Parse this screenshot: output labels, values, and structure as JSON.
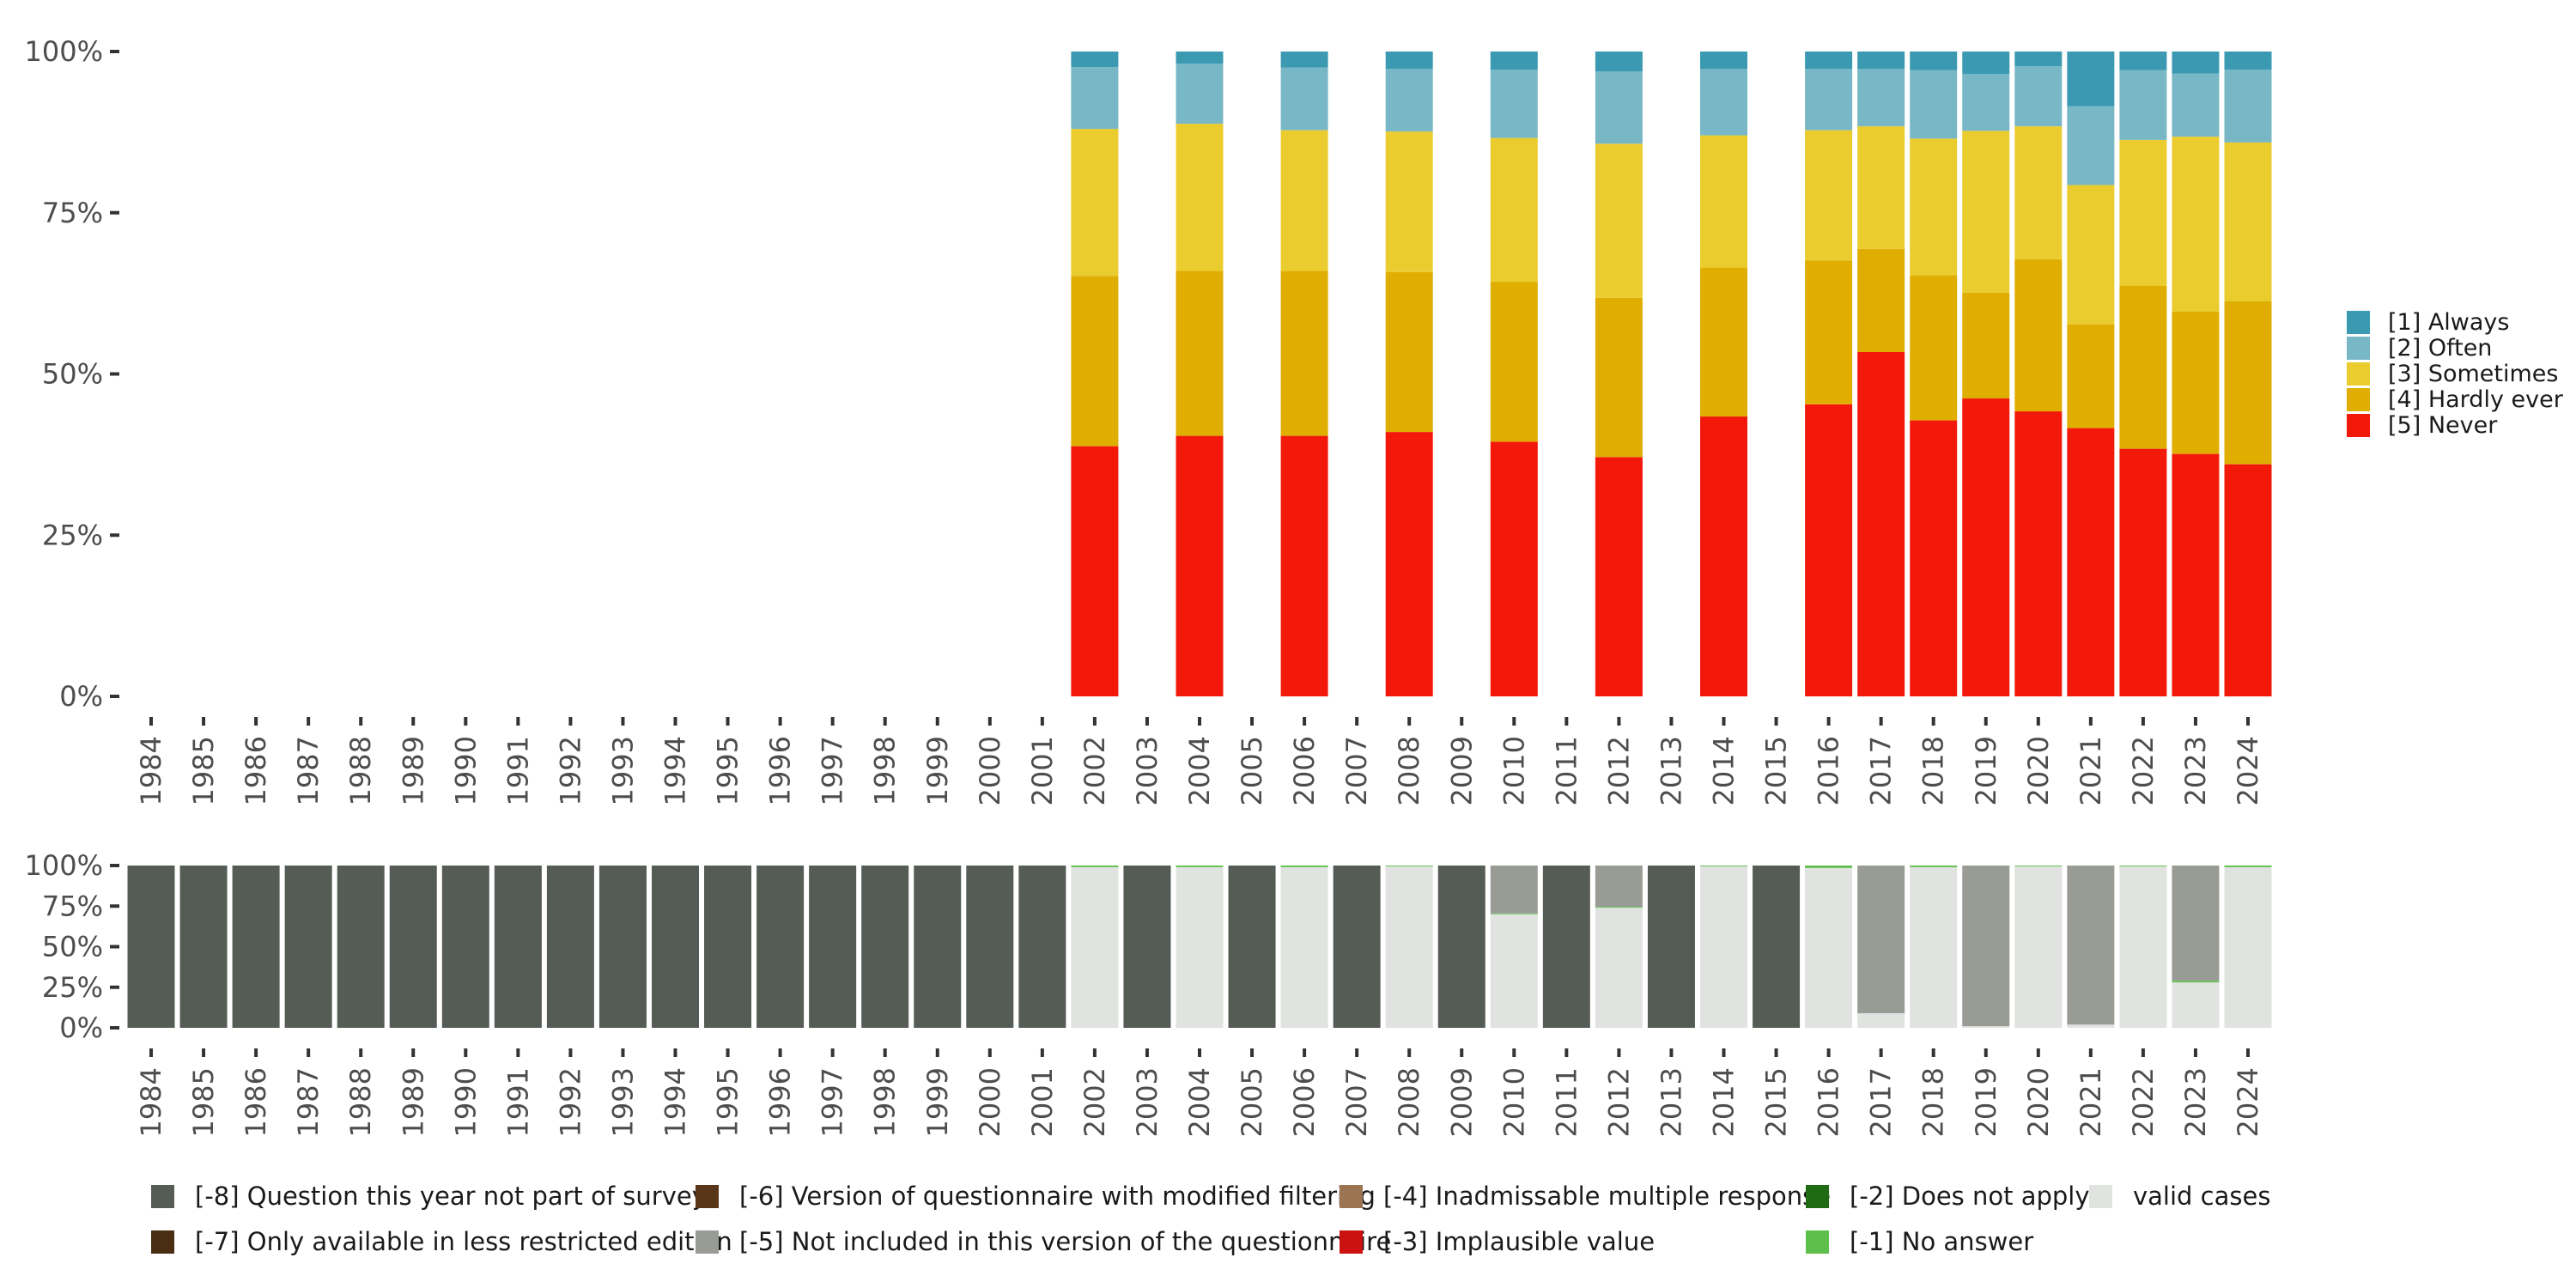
{
  "chart_data": [
    {
      "type": "bar",
      "stacked": true,
      "title": "",
      "xlabel": "",
      "ylabel": "",
      "ylim": [
        0,
        100
      ],
      "yticks": [
        "0%",
        "25%",
        "50%",
        "75%",
        "100%"
      ],
      "categories": [
        "1984",
        "1985",
        "1986",
        "1987",
        "1988",
        "1989",
        "1990",
        "1991",
        "1992",
        "1993",
        "1994",
        "1995",
        "1996",
        "1997",
        "1998",
        "1999",
        "2000",
        "2001",
        "2002",
        "2003",
        "2004",
        "2005",
        "2006",
        "2007",
        "2008",
        "2009",
        "2010",
        "2011",
        "2012",
        "2013",
        "2014",
        "2015",
        "2016",
        "2017",
        "2018",
        "2019",
        "2020",
        "2021",
        "2022",
        "2023",
        "2024"
      ],
      "legend_position": "right",
      "series": [
        {
          "name": "[5] Never",
          "color": "#f2190a",
          "values": [
            0,
            0,
            0,
            0,
            0,
            0,
            0,
            0,
            0,
            0,
            0,
            0,
            0,
            0,
            0,
            0,
            0,
            0,
            38.8,
            0,
            40.4,
            0,
            40.4,
            0,
            41.0,
            0,
            39.5,
            0,
            37.1,
            0,
            43.4,
            0,
            45.3,
            53.4,
            42.8,
            46.2,
            44.2,
            41.6,
            38.4,
            37.6,
            36.0
          ]
        },
        {
          "name": "[4] Hardly ever",
          "color": "#e0ae00",
          "values": [
            0,
            0,
            0,
            0,
            0,
            0,
            0,
            0,
            0,
            0,
            0,
            0,
            0,
            0,
            0,
            0,
            0,
            0,
            26.4,
            0,
            25.6,
            0,
            25.6,
            0,
            24.8,
            0,
            24.8,
            0,
            24.7,
            0,
            23.1,
            0,
            22.3,
            16.0,
            22.5,
            16.4,
            23.6,
            16.1,
            25.3,
            22.1,
            25.3
          ]
        },
        {
          "name": "[3] Sometimes",
          "color": "#ebcc2e",
          "values": [
            0,
            0,
            0,
            0,
            0,
            0,
            0,
            0,
            0,
            0,
            0,
            0,
            0,
            0,
            0,
            0,
            0,
            0,
            22.8,
            0,
            22.8,
            0,
            21.8,
            0,
            21.8,
            0,
            22.3,
            0,
            23.9,
            0,
            20.5,
            0,
            20.2,
            19.0,
            21.2,
            25.1,
            20.6,
            21.6,
            22.6,
            27.1,
            24.6
          ]
        },
        {
          "name": "[2] Often",
          "color": "#78b7c5",
          "values": [
            0,
            0,
            0,
            0,
            0,
            0,
            0,
            0,
            0,
            0,
            0,
            0,
            0,
            0,
            0,
            0,
            0,
            0,
            9.6,
            0,
            9.3,
            0,
            9.7,
            0,
            9.7,
            0,
            10.6,
            0,
            11.2,
            0,
            10.3,
            0,
            9.5,
            8.9,
            10.6,
            8.8,
            9.3,
            12.2,
            10.8,
            9.8,
            11.3
          ]
        },
        {
          "name": "[1] Always",
          "color": "#3b9ab2",
          "values": [
            0,
            0,
            0,
            0,
            0,
            0,
            0,
            0,
            0,
            0,
            0,
            0,
            0,
            0,
            0,
            0,
            0,
            0,
            2.4,
            0,
            1.9,
            0,
            2.5,
            0,
            2.7,
            0,
            2.8,
            0,
            3.1,
            0,
            2.7,
            0,
            2.7,
            2.7,
            2.9,
            3.5,
            2.3,
            8.5,
            2.9,
            3.4,
            2.8
          ]
        }
      ]
    },
    {
      "type": "bar",
      "stacked": true,
      "title": "",
      "xlabel": "",
      "ylabel": "",
      "ylim": [
        0,
        100
      ],
      "yticks": [
        "0%",
        "25%",
        "50%",
        "75%",
        "100%"
      ],
      "categories": [
        "1984",
        "1985",
        "1986",
        "1987",
        "1988",
        "1989",
        "1990",
        "1991",
        "1992",
        "1993",
        "1994",
        "1995",
        "1996",
        "1997",
        "1998",
        "1999",
        "2000",
        "2001",
        "2002",
        "2003",
        "2004",
        "2005",
        "2006",
        "2007",
        "2008",
        "2009",
        "2010",
        "2011",
        "2012",
        "2013",
        "2014",
        "2015",
        "2016",
        "2017",
        "2018",
        "2019",
        "2020",
        "2021",
        "2022",
        "2023",
        "2024"
      ],
      "legend_position": "bottom",
      "series": [
        {
          "name": "valid cases",
          "color": "#e0e3df",
          "values": [
            0,
            0,
            0,
            0,
            0,
            0,
            0,
            0,
            0,
            0,
            0,
            0,
            0,
            0,
            0,
            0,
            0,
            0,
            99,
            0,
            99,
            0,
            99,
            0,
            99.5,
            0,
            70,
            0,
            74,
            0,
            99.5,
            0,
            98.5,
            9,
            99,
            1,
            99.5,
            2,
            99.5,
            28,
            99
          ]
        },
        {
          "name": "[-1] No answer",
          "color": "#5ec04a",
          "values": [
            0,
            0,
            0,
            0,
            0,
            0,
            0,
            0,
            0,
            0,
            0,
            0,
            0,
            0,
            0,
            0,
            0,
            0,
            1,
            0,
            1,
            0,
            1,
            0,
            0.5,
            0,
            0.5,
            0,
            0.5,
            0,
            0.5,
            0,
            1.5,
            0,
            1,
            0,
            0.5,
            0,
            0.5,
            1,
            1
          ]
        },
        {
          "name": "[-2] Does not apply",
          "color": "#1e6b14",
          "values": [
            0,
            0,
            0,
            0,
            0,
            0,
            0,
            0,
            0,
            0,
            0,
            0,
            0,
            0,
            0,
            0,
            0,
            0,
            0,
            0,
            0,
            0,
            0,
            0,
            0,
            0,
            0,
            0,
            0,
            0,
            0,
            0,
            0,
            0,
            0,
            0,
            0,
            0,
            0,
            0,
            0
          ]
        },
        {
          "name": "[-3] Implausible value",
          "color": "#cc1111",
          "values": [
            0,
            0,
            0,
            0,
            0,
            0,
            0,
            0,
            0,
            0,
            0,
            0,
            0,
            0,
            0,
            0,
            0,
            0,
            0,
            0,
            0,
            0,
            0,
            0,
            0,
            0,
            0,
            0,
            0,
            0,
            0,
            0,
            0,
            0,
            0,
            0,
            0,
            0,
            0,
            0,
            0
          ]
        },
        {
          "name": "[-4] Inadmissable multiple response",
          "color": "#9b7451",
          "values": [
            0,
            0,
            0,
            0,
            0,
            0,
            0,
            0,
            0,
            0,
            0,
            0,
            0,
            0,
            0,
            0,
            0,
            0,
            0,
            0,
            0,
            0,
            0,
            0,
            0,
            0,
            0,
            0,
            0,
            0,
            0,
            0,
            0,
            0,
            0,
            0,
            0,
            0,
            0,
            0,
            0
          ]
        },
        {
          "name": "[-5] Not included in this version of the questionnaire",
          "color": "#989c95",
          "values": [
            0,
            0,
            0,
            0,
            0,
            0,
            0,
            0,
            0,
            0,
            0,
            0,
            0,
            0,
            0,
            0,
            0,
            0,
            0,
            0,
            0,
            0,
            0,
            0,
            0,
            0,
            29.5,
            0,
            25.5,
            0,
            0,
            0,
            0,
            91,
            0,
            99,
            0,
            98,
            0,
            71,
            0
          ]
        },
        {
          "name": "[-6] Version of questionnaire with modified filtering",
          "color": "#5a3618",
          "values": [
            0,
            0,
            0,
            0,
            0,
            0,
            0,
            0,
            0,
            0,
            0,
            0,
            0,
            0,
            0,
            0,
            0,
            0,
            0,
            0,
            0,
            0,
            0,
            0,
            0,
            0,
            0,
            0,
            0,
            0,
            0,
            0,
            0,
            0,
            0,
            0,
            0,
            0,
            0,
            0,
            0
          ]
        },
        {
          "name": "[-7] Only available in less restricted edition",
          "color": "#4a2e14",
          "values": [
            0,
            0,
            0,
            0,
            0,
            0,
            0,
            0,
            0,
            0,
            0,
            0,
            0,
            0,
            0,
            0,
            0,
            0,
            0,
            0,
            0,
            0,
            0,
            0,
            0,
            0,
            0,
            0,
            0,
            0,
            0,
            0,
            0,
            0,
            0,
            0,
            0,
            0,
            0,
            0,
            0
          ]
        },
        {
          "name": "[-8] Question this year not part of survey",
          "color": "#555b55",
          "values": [
            100,
            100,
            100,
            100,
            100,
            100,
            100,
            100,
            100,
            100,
            100,
            100,
            100,
            100,
            100,
            100,
            100,
            100,
            0,
            100,
            0,
            100,
            0,
            100,
            0,
            100,
            0,
            100,
            0,
            100,
            0,
            100,
            0,
            0,
            0,
            0,
            0,
            0,
            0,
            0,
            0
          ]
        }
      ],
      "legend_order": [
        "[-8] Question this year not part of survey",
        "[-6] Version of questionnaire with modified filtering",
        "[-4] Inadmissable multiple response",
        "[-2] Does not apply",
        "valid cases",
        "[-7] Only available in less restricted edition",
        "[-5] Not included in this version of the questionnaire",
        "[-3] Implausible value",
        "[-1] No answer"
      ]
    }
  ]
}
